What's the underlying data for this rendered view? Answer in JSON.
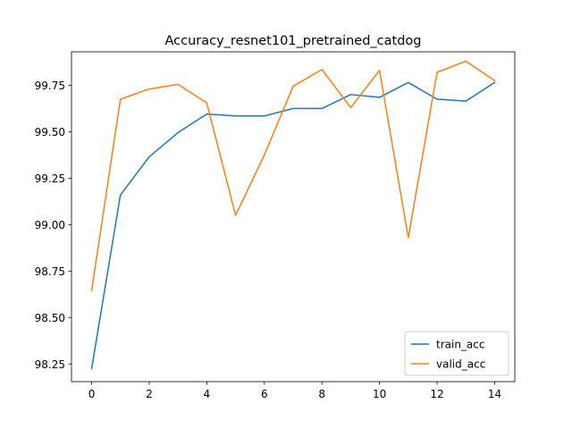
{
  "chart_data": {
    "type": "line",
    "title": "Accuracy_resnet101_pretrained_catdog",
    "xlabel": "",
    "ylabel": "",
    "x": [
      0,
      1,
      2,
      3,
      4,
      5,
      6,
      7,
      8,
      9,
      10,
      11,
      12,
      13,
      14
    ],
    "xlim": [
      -0.7,
      14.7
    ],
    "ylim": [
      98.155,
      99.93
    ],
    "xticks": [
      0,
      2,
      4,
      6,
      8,
      10,
      12,
      14
    ],
    "yticks": [
      98.25,
      98.5,
      98.75,
      99.0,
      99.25,
      99.5,
      99.75
    ],
    "ytick_labels": [
      "98.25",
      "98.50",
      "98.75",
      "99.00",
      "99.25",
      "99.50",
      "99.75"
    ],
    "grid": false,
    "legend_position": "lower-right",
    "series": [
      {
        "name": "train_acc",
        "color": "#1f77b4",
        "values": [
          98.225,
          99.16,
          99.365,
          99.495,
          99.595,
          99.585,
          99.585,
          99.625,
          99.625,
          99.7,
          99.685,
          99.765,
          99.675,
          99.665,
          99.765
        ]
      },
      {
        "name": "valid_acc",
        "color": "#ff7f0e",
        "values": [
          98.645,
          99.675,
          99.73,
          99.755,
          99.655,
          99.05,
          99.375,
          99.745,
          99.835,
          99.63,
          99.83,
          98.93,
          99.82,
          99.88,
          99.775
        ]
      }
    ]
  }
}
